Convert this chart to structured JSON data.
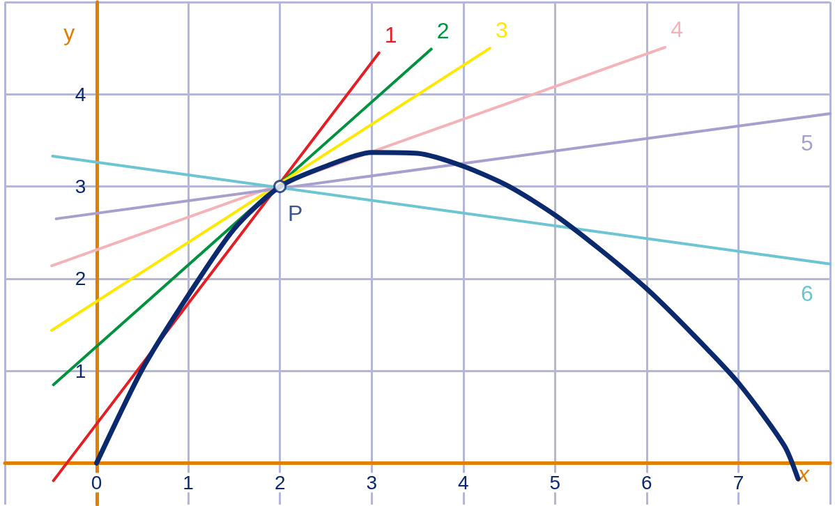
{
  "chart_data": {
    "type": "line",
    "xlabel": "x",
    "ylabel": "y",
    "xlim": [
      -1,
      8
    ],
    "ylim": [
      -0.45,
      5
    ],
    "xticks": [
      {
        "value": -1,
        "label": null
      },
      0,
      1,
      2,
      3,
      4,
      5,
      6,
      7,
      {
        "value": 8,
        "label": null
      }
    ],
    "yticks": [
      {
        "value": 0,
        "label": null
      },
      1,
      2,
      3,
      4,
      {
        "value": 5,
        "label": null
      }
    ],
    "grid": true,
    "legend": false,
    "marker": "none",
    "line_style": "solid",
    "annotations": [
      {
        "text": "P",
        "x": 2,
        "y": 3
      }
    ],
    "series": [
      {
        "color": "#0b2a6e",
        "x": [
          0,
          0.5,
          1,
          1.5,
          2,
          2.5,
          3,
          3.5,
          4,
          4.5,
          5,
          5.5,
          6,
          6.5,
          7,
          7.5,
          7.65
        ],
        "values": [
          0,
          1.02,
          1.82,
          2.54,
          3,
          3.22,
          3.37,
          3.36,
          3.22,
          3,
          2.69,
          2.31,
          1.89,
          1.4,
          0.87,
          0.19,
          -0.17
        ]
      },
      {
        "name": "1",
        "color": "#e31e24",
        "x": [
          -0.47,
          3.08
        ],
        "values": [
          -0.19,
          4.45
        ]
      },
      {
        "name": "2",
        "color": "#00923f",
        "x": [
          -0.47,
          3.65
        ],
        "values": [
          0.85,
          4.49
        ]
      },
      {
        "name": "3",
        "color": "#ffe800",
        "x": [
          -0.49,
          4.29
        ],
        "values": [
          1.44,
          4.5
        ]
      },
      {
        "name": "4",
        "color": "#f4b3b8",
        "x": [
          -0.49,
          6.2
        ],
        "values": [
          2.14,
          4.51
        ]
      },
      {
        "name": "5",
        "color": "#a99fcc",
        "x": [
          -0.44,
          8
        ],
        "values": [
          2.65,
          3.79
        ]
      },
      {
        "name": "6",
        "color": "#6cc5d1",
        "x": [
          -0.48,
          8
        ],
        "values": [
          3.33,
          2.16
        ]
      }
    ]
  }
}
